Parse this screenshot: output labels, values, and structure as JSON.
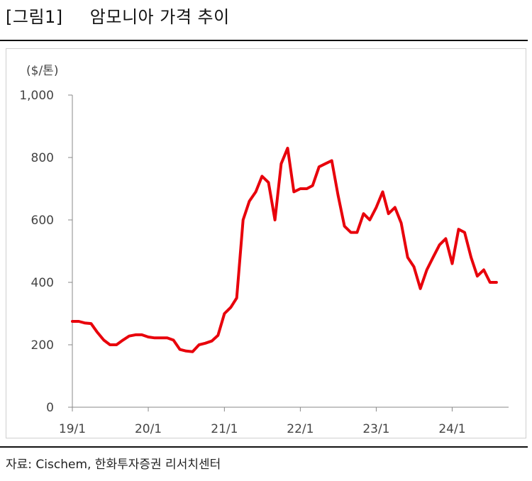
{
  "figure": {
    "label": "[그림1]",
    "title": "암모니아 가격 추이"
  },
  "source": "자료: Cischem, 한화투자증권 리서치센터",
  "colors": {
    "series": "#e8000b",
    "axis": "#888888"
  },
  "chart_data": {
    "type": "line",
    "title": "암모니아 가격 추이",
    "ylabel": "($/톤)",
    "xlabel": "",
    "ylim": [
      0,
      1000
    ],
    "yticks": [
      0,
      200,
      400,
      600,
      800,
      1000
    ],
    "ytick_labels": [
      "0",
      "200",
      "400",
      "600",
      "800",
      "1,000"
    ],
    "xlim": [
      "2019-01-01",
      "2024-09-01"
    ],
    "xticks": [
      "2019-01-01",
      "2020-01-01",
      "2021-01-01",
      "2022-01-01",
      "2023-01-01",
      "2024-01-01"
    ],
    "xtick_labels": [
      "19/1",
      "20/1",
      "21/1",
      "22/1",
      "23/1",
      "24/1"
    ],
    "grid": false,
    "legend": "none",
    "series": [
      {
        "color": "#e8000b",
        "x": [
          "2019-01-01",
          "2019-02-01",
          "2019-03-01",
          "2019-04-01",
          "2019-05-01",
          "2019-06-01",
          "2019-07-01",
          "2019-08-01",
          "2019-09-01",
          "2019-10-01",
          "2019-11-01",
          "2019-12-01",
          "2020-01-01",
          "2020-02-01",
          "2020-03-01",
          "2020-04-01",
          "2020-05-01",
          "2020-06-01",
          "2020-07-01",
          "2020-08-01",
          "2020-09-01",
          "2020-10-01",
          "2020-11-01",
          "2020-12-01",
          "2021-01-01",
          "2021-02-01",
          "2021-03-01",
          "2021-04-01",
          "2021-05-01",
          "2021-06-01",
          "2021-07-01",
          "2021-08-01",
          "2021-09-01",
          "2021-10-01",
          "2021-11-01",
          "2021-12-01",
          "2022-01-01",
          "2022-02-01",
          "2022-03-01",
          "2022-04-01",
          "2022-05-01",
          "2022-06-01",
          "2022-07-01",
          "2022-08-01",
          "2022-09-01",
          "2022-10-01",
          "2022-11-01",
          "2022-12-01",
          "2023-01-01",
          "2023-02-01",
          "2023-03-01",
          "2023-04-01",
          "2023-05-01",
          "2023-06-01",
          "2023-07-01",
          "2023-08-01",
          "2023-09-01",
          "2023-10-01",
          "2023-11-01",
          "2023-12-01",
          "2024-01-01",
          "2024-02-01",
          "2024-03-01",
          "2024-04-01",
          "2024-05-01",
          "2024-06-01",
          "2024-07-01",
          "2024-08-01"
        ],
        "y": [
          275,
          275,
          270,
          268,
          240,
          215,
          200,
          200,
          215,
          228,
          232,
          232,
          225,
          222,
          222,
          222,
          215,
          185,
          180,
          178,
          200,
          205,
          212,
          230,
          300,
          320,
          350,
          600,
          660,
          690,
          740,
          720,
          600,
          780,
          830,
          690,
          700,
          700,
          710,
          770,
          780,
          790,
          680,
          580,
          560,
          560,
          620,
          600,
          640,
          690,
          620,
          640,
          590,
          480,
          450,
          380,
          440,
          480,
          520,
          540,
          460,
          570,
          560,
          480,
          420,
          440,
          400,
          400
        ]
      }
    ]
  }
}
